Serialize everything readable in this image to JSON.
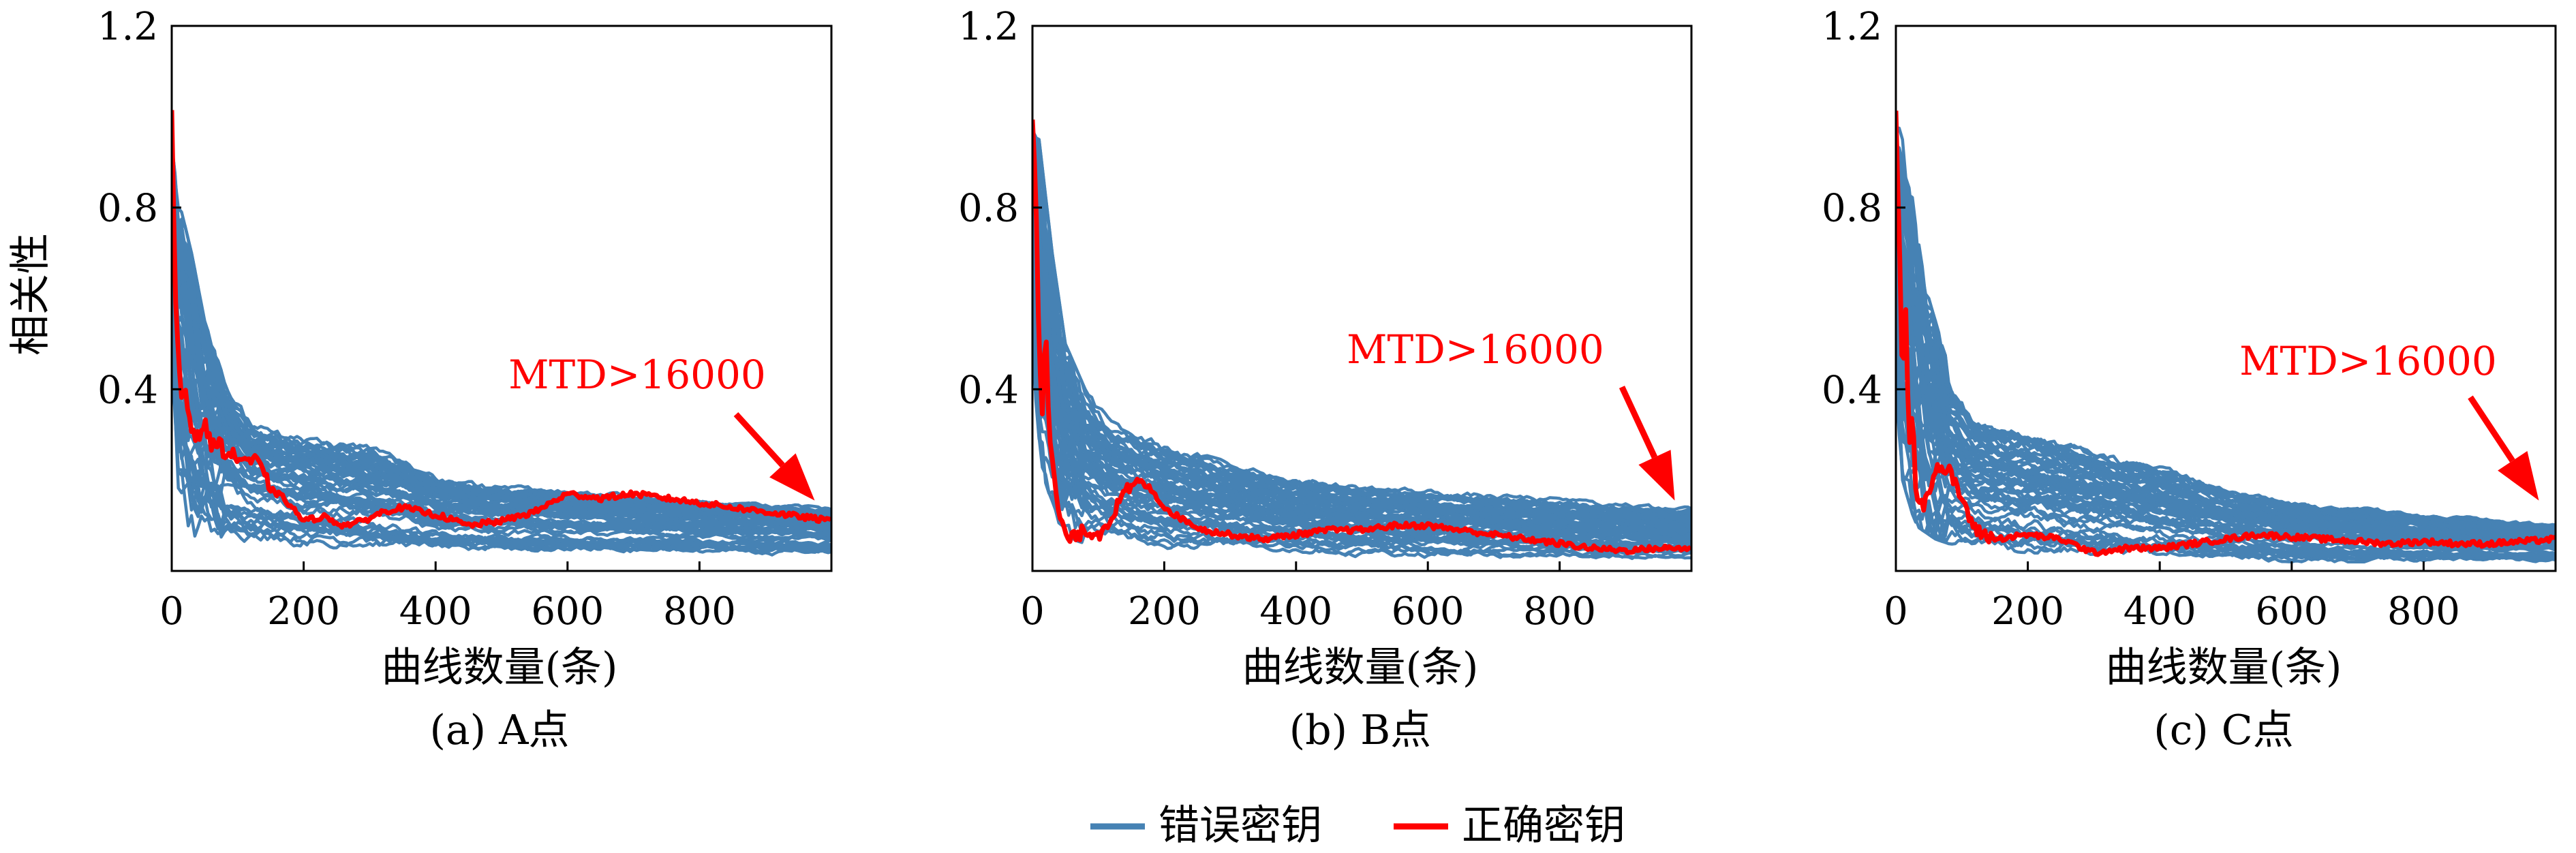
{
  "figure": {
    "legend": {
      "placement": "bottom-center",
      "items": [
        {
          "label": "错误密钥",
          "color": "#4682b4"
        },
        {
          "label": "正确密钥",
          "color": "#ff0000"
        }
      ]
    }
  },
  "chart_data": [
    {
      "type": "line",
      "caption": "(a) A点",
      "xlabel": "曲线数量(条)",
      "ylabel": "相关性",
      "xlim": [
        0,
        1000
      ],
      "ylim": [
        0,
        1.2
      ],
      "xticks": [
        0,
        200,
        400,
        600,
        800
      ],
      "yticks": [
        0.4,
        0.8,
        1.2
      ],
      "annotation": {
        "text": "MTD>16000",
        "color": "#ff0000",
        "arrow_to": [
          985,
          0.14
        ]
      },
      "series": [
        {
          "name": "错误密钥",
          "color": "#4682b4",
          "lower_envelope": [
            [
              0,
              0.4
            ],
            [
              10,
              0.15
            ],
            [
              30,
              0.08
            ],
            [
              60,
              0.06
            ],
            [
              100,
              0.05
            ],
            [
              200,
              0.04
            ],
            [
              400,
              0.03
            ],
            [
              600,
              0.03
            ],
            [
              800,
              0.03
            ],
            [
              1000,
              0.03
            ]
          ],
          "upper_envelope": [
            [
              0,
              0.95
            ],
            [
              10,
              0.82
            ],
            [
              30,
              0.7
            ],
            [
              50,
              0.55
            ],
            [
              80,
              0.42
            ],
            [
              120,
              0.33
            ],
            [
              200,
              0.3
            ],
            [
              300,
              0.28
            ],
            [
              400,
              0.21
            ],
            [
              500,
              0.19
            ],
            [
              600,
              0.18
            ],
            [
              800,
              0.16
            ],
            [
              1000,
              0.14
            ]
          ]
        },
        {
          "name": "正确密钥",
          "color": "#ff0000",
          "points": [
            [
              0,
              1.0
            ],
            [
              5,
              0.62
            ],
            [
              10,
              0.48
            ],
            [
              15,
              0.38
            ],
            [
              20,
              0.41
            ],
            [
              25,
              0.35
            ],
            [
              30,
              0.32
            ],
            [
              40,
              0.29
            ],
            [
              50,
              0.33
            ],
            [
              60,
              0.27
            ],
            [
              70,
              0.29
            ],
            [
              80,
              0.26
            ],
            [
              100,
              0.25
            ],
            [
              130,
              0.24
            ],
            [
              150,
              0.18
            ],
            [
              170,
              0.16
            ],
            [
              200,
              0.11
            ],
            [
              230,
              0.12
            ],
            [
              260,
              0.1
            ],
            [
              290,
              0.11
            ],
            [
              320,
              0.13
            ],
            [
              350,
              0.14
            ],
            [
              380,
              0.13
            ],
            [
              410,
              0.12
            ],
            [
              450,
              0.1
            ],
            [
              500,
              0.11
            ],
            [
              550,
              0.13
            ],
            [
              600,
              0.17
            ],
            [
              650,
              0.16
            ],
            [
              700,
              0.17
            ],
            [
              750,
              0.16
            ],
            [
              800,
              0.15
            ],
            [
              850,
              0.14
            ],
            [
              900,
              0.13
            ],
            [
              950,
              0.12
            ],
            [
              1000,
              0.11
            ]
          ]
        }
      ]
    },
    {
      "type": "line",
      "caption": "(b) B点",
      "xlabel": "曲线数量(条)",
      "ylabel": "",
      "xlim": [
        0,
        1000
      ],
      "ylim": [
        0,
        1.2
      ],
      "xticks": [
        0,
        200,
        400,
        600,
        800
      ],
      "yticks": [
        0.4,
        0.8,
        1.2
      ],
      "annotation": {
        "text": "MTD>16000",
        "color": "#ff0000",
        "arrow_to": [
          985,
          0.14
        ]
      },
      "series": [
        {
          "name": "错误密钥",
          "color": "#4682b4",
          "lower_envelope": [
            [
              0,
              0.45
            ],
            [
              10,
              0.2
            ],
            [
              30,
              0.1
            ],
            [
              60,
              0.07
            ],
            [
              100,
              0.05
            ],
            [
              200,
              0.04
            ],
            [
              400,
              0.03
            ],
            [
              600,
              0.02
            ],
            [
              800,
              0.02
            ],
            [
              1000,
              0.02
            ]
          ],
          "upper_envelope": [
            [
              0,
              1.0
            ],
            [
              10,
              0.95
            ],
            [
              30,
              0.7
            ],
            [
              50,
              0.5
            ],
            [
              80,
              0.4
            ],
            [
              120,
              0.33
            ],
            [
              200,
              0.28
            ],
            [
              300,
              0.24
            ],
            [
              400,
              0.21
            ],
            [
              500,
              0.19
            ],
            [
              600,
              0.18
            ],
            [
              800,
              0.16
            ],
            [
              1000,
              0.14
            ]
          ]
        },
        {
          "name": "正确密钥",
          "color": "#ff0000",
          "points": [
            [
              0,
              1.0
            ],
            [
              5,
              0.85
            ],
            [
              10,
              0.5
            ],
            [
              15,
              0.36
            ],
            [
              20,
              0.55
            ],
            [
              25,
              0.3
            ],
            [
              30,
              0.25
            ],
            [
              40,
              0.12
            ],
            [
              50,
              0.08
            ],
            [
              60,
              0.07
            ],
            [
              80,
              0.09
            ],
            [
              100,
              0.08
            ],
            [
              120,
              0.12
            ],
            [
              140,
              0.17
            ],
            [
              160,
              0.2
            ],
            [
              180,
              0.18
            ],
            [
              200,
              0.14
            ],
            [
              220,
              0.12
            ],
            [
              260,
              0.09
            ],
            [
              300,
              0.08
            ],
            [
              350,
              0.07
            ],
            [
              400,
              0.08
            ],
            [
              450,
              0.09
            ],
            [
              500,
              0.09
            ],
            [
              550,
              0.1
            ],
            [
              600,
              0.1
            ],
            [
              650,
              0.09
            ],
            [
              700,
              0.08
            ],
            [
              750,
              0.07
            ],
            [
              800,
              0.06
            ],
            [
              850,
              0.05
            ],
            [
              900,
              0.045
            ],
            [
              950,
              0.05
            ],
            [
              1000,
              0.05
            ]
          ]
        }
      ]
    },
    {
      "type": "line",
      "caption": "(c) C点",
      "xlabel": "曲线数量(条)",
      "ylabel": "",
      "xlim": [
        0,
        1000
      ],
      "ylim": [
        0,
        1.2
      ],
      "xticks": [
        0,
        200,
        400,
        600,
        800
      ],
      "yticks": [
        0.4,
        0.8,
        1.2
      ],
      "annotation": {
        "text": "MTD>16000",
        "color": "#ff0000",
        "arrow_to": [
          985,
          0.14
        ]
      },
      "series": [
        {
          "name": "错误密钥",
          "color": "#4682b4",
          "lower_envelope": [
            [
              0,
              0.4
            ],
            [
              10,
              0.2
            ],
            [
              30,
              0.1
            ],
            [
              60,
              0.07
            ],
            [
              100,
              0.05
            ],
            [
              200,
              0.04
            ],
            [
              400,
              0.03
            ],
            [
              600,
              0.02
            ],
            [
              800,
              0.02
            ],
            [
              1000,
              0.02
            ]
          ],
          "upper_envelope": [
            [
              0,
              1.0
            ],
            [
              10,
              0.95
            ],
            [
              30,
              0.78
            ],
            [
              50,
              0.6
            ],
            [
              80,
              0.45
            ],
            [
              120,
              0.36
            ],
            [
              200,
              0.32
            ],
            [
              300,
              0.28
            ],
            [
              400,
              0.24
            ],
            [
              500,
              0.19
            ],
            [
              600,
              0.16
            ],
            [
              800,
              0.13
            ],
            [
              1000,
              0.11
            ]
          ]
        },
        {
          "name": "正确密钥",
          "color": "#ff0000",
          "points": [
            [
              0,
              1.0
            ],
            [
              5,
              0.75
            ],
            [
              10,
              0.4
            ],
            [
              15,
              0.58
            ],
            [
              20,
              0.28
            ],
            [
              25,
              0.35
            ],
            [
              30,
              0.18
            ],
            [
              40,
              0.14
            ],
            [
              50,
              0.18
            ],
            [
              60,
              0.23
            ],
            [
              80,
              0.22
            ],
            [
              100,
              0.16
            ],
            [
              120,
              0.09
            ],
            [
              150,
              0.07
            ],
            [
              200,
              0.08
            ],
            [
              250,
              0.07
            ],
            [
              300,
              0.04
            ],
            [
              350,
              0.05
            ],
            [
              400,
              0.05
            ],
            [
              450,
              0.06
            ],
            [
              500,
              0.07
            ],
            [
              550,
              0.08
            ],
            [
              600,
              0.075
            ],
            [
              650,
              0.07
            ],
            [
              700,
              0.065
            ],
            [
              750,
              0.06
            ],
            [
              800,
              0.065
            ],
            [
              850,
              0.06
            ],
            [
              900,
              0.06
            ],
            [
              950,
              0.065
            ],
            [
              1000,
              0.07
            ]
          ]
        }
      ]
    }
  ]
}
